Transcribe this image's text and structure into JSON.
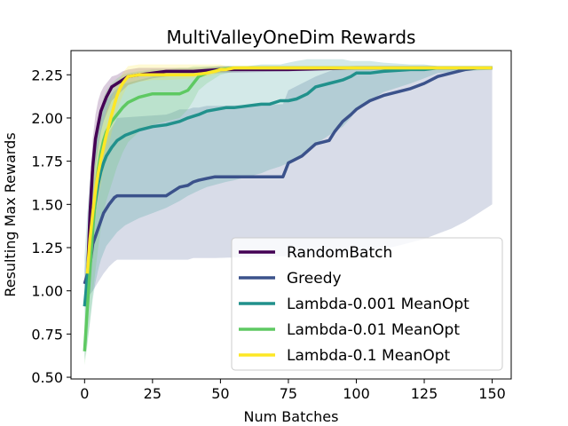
{
  "chart_data": {
    "type": "line",
    "title": "MultiValleyOneDim Rewards",
    "xlabel": "Num Batches",
    "ylabel": "Resulting Max Rewards",
    "xlim": [
      -5,
      157
    ],
    "ylim": [
      0.49,
      2.39
    ],
    "xticks": [
      0,
      25,
      50,
      75,
      100,
      125,
      150
    ],
    "xtick_labels": [
      "0",
      "25",
      "50",
      "75",
      "100",
      "125",
      "150"
    ],
    "yticks": [
      0.5,
      0.75,
      1.0,
      1.25,
      1.5,
      1.75,
      2.0,
      2.25
    ],
    "ytick_labels": [
      "0.50",
      "0.75",
      "1.00",
      "1.25",
      "1.50",
      "1.75",
      "2.00",
      "2.25"
    ],
    "legend_position": "lower-right",
    "series": [
      {
        "name": "RandomBatch",
        "color": "#440154",
        "x": [
          1,
          2,
          3,
          4,
          5,
          6,
          7,
          8,
          9,
          10,
          12,
          14,
          16,
          20,
          25,
          30,
          40,
          50,
          75,
          100,
          125,
          150
        ],
        "y": [
          1.06,
          1.45,
          1.72,
          1.88,
          1.96,
          2.04,
          2.08,
          2.12,
          2.15,
          2.18,
          2.2,
          2.22,
          2.24,
          2.25,
          2.26,
          2.27,
          2.27,
          2.28,
          2.28,
          2.29,
          2.29,
          2.29
        ],
        "lower": [
          1.0,
          1.3,
          1.55,
          1.72,
          1.82,
          1.92,
          1.98,
          2.02,
          2.06,
          2.1,
          2.13,
          2.16,
          2.19,
          2.21,
          2.23,
          2.24,
          2.25,
          2.26,
          2.27,
          2.28,
          2.28,
          2.28
        ],
        "upper": [
          1.12,
          1.6,
          1.88,
          2.02,
          2.1,
          2.15,
          2.18,
          2.2,
          2.22,
          2.24,
          2.25,
          2.27,
          2.28,
          2.29,
          2.29,
          2.29,
          2.29,
          2.3,
          2.3,
          2.3,
          2.3,
          2.3
        ]
      },
      {
        "name": "Greedy",
        "color": "#3b528b",
        "x": [
          0,
          2,
          3,
          5,
          7,
          9,
          11,
          12,
          30,
          32,
          35,
          38,
          40,
          42,
          45,
          48,
          73,
          74,
          75,
          80,
          85,
          90,
          92,
          95,
          98,
          100,
          105,
          110,
          115,
          120,
          125,
          130,
          135,
          140,
          145,
          150
        ],
        "y": [
          1.04,
          1.15,
          1.27,
          1.36,
          1.45,
          1.5,
          1.54,
          1.55,
          1.55,
          1.57,
          1.6,
          1.61,
          1.63,
          1.64,
          1.65,
          1.66,
          1.66,
          1.7,
          1.74,
          1.78,
          1.85,
          1.87,
          1.92,
          1.98,
          2.02,
          2.05,
          2.1,
          2.13,
          2.15,
          2.17,
          2.2,
          2.24,
          2.26,
          2.28,
          2.29,
          2.29
        ],
        "lower": [
          0.95,
          0.98,
          1.0,
          1.05,
          1.1,
          1.14,
          1.17,
          1.18,
          1.18,
          1.18,
          1.18,
          1.18,
          1.19,
          1.19,
          1.19,
          1.19,
          1.2,
          1.2,
          1.2,
          1.2,
          1.2,
          1.21,
          1.21,
          1.21,
          1.22,
          1.22,
          1.23,
          1.24,
          1.26,
          1.28,
          1.3,
          1.33,
          1.36,
          1.4,
          1.45,
          1.5
        ],
        "upper": [
          1.12,
          1.4,
          1.6,
          1.75,
          1.85,
          1.92,
          1.97,
          2.0,
          2.02,
          2.03,
          2.05,
          2.05,
          2.06,
          2.06,
          2.07,
          2.07,
          2.08,
          2.12,
          2.16,
          2.2,
          2.24,
          2.27,
          2.28,
          2.29,
          2.29,
          2.3,
          2.3,
          2.3,
          2.3,
          2.3,
          2.3,
          2.3,
          2.3,
          2.3,
          2.3,
          2.3
        ]
      },
      {
        "name": "Lambda-0.001 MeanOpt",
        "color": "#21918c",
        "x": [
          0,
          1,
          2,
          3,
          4,
          5,
          6,
          7,
          8,
          10,
          12,
          15,
          20,
          25,
          30,
          35,
          38,
          42,
          45,
          52,
          55,
          60,
          65,
          68,
          72,
          75,
          78,
          82,
          85,
          90,
          95,
          98,
          100,
          105,
          110,
          120,
          125,
          130,
          150
        ],
        "y": [
          0.91,
          1.08,
          1.25,
          1.4,
          1.52,
          1.62,
          1.69,
          1.74,
          1.78,
          1.83,
          1.87,
          1.9,
          1.93,
          1.95,
          1.96,
          1.98,
          2.0,
          2.02,
          2.04,
          2.06,
          2.06,
          2.07,
          2.08,
          2.08,
          2.1,
          2.1,
          2.11,
          2.14,
          2.18,
          2.2,
          2.22,
          2.24,
          2.26,
          2.26,
          2.27,
          2.28,
          2.28,
          2.29,
          2.29
        ],
        "lower": [
          0.6,
          0.7,
          0.82,
          0.95,
          1.05,
          1.12,
          1.18,
          1.22,
          1.26,
          1.3,
          1.34,
          1.38,
          1.42,
          1.45,
          1.48,
          1.52,
          1.55,
          1.58,
          1.6,
          1.63,
          1.64,
          1.66,
          1.68,
          1.7,
          1.72,
          1.74,
          1.76,
          1.8,
          1.85,
          1.9,
          1.95,
          2.0,
          2.05,
          2.1,
          2.15,
          2.2,
          2.23,
          2.26,
          2.28
        ],
        "upper": [
          1.2,
          1.45,
          1.65,
          1.8,
          1.9,
          1.98,
          2.03,
          2.07,
          2.1,
          2.14,
          2.17,
          2.2,
          2.22,
          2.24,
          2.25,
          2.26,
          2.27,
          2.28,
          2.29,
          2.3,
          2.3,
          2.3,
          2.31,
          2.31,
          2.31,
          2.32,
          2.33,
          2.34,
          2.34,
          2.34,
          2.34,
          2.33,
          2.33,
          2.33,
          2.32,
          2.31,
          2.31,
          2.3,
          2.3
        ]
      },
      {
        "name": "Lambda-0.01 MeanOpt",
        "color": "#5ec962",
        "x": [
          0,
          1,
          2,
          3,
          4,
          5,
          6,
          7,
          8,
          10,
          12,
          14,
          16,
          20,
          25,
          30,
          35,
          38,
          40,
          42,
          45,
          50,
          55,
          75,
          100,
          150
        ],
        "y": [
          0.65,
          0.9,
          1.12,
          1.35,
          1.55,
          1.7,
          1.8,
          1.87,
          1.92,
          1.98,
          2.02,
          2.06,
          2.09,
          2.12,
          2.14,
          2.14,
          2.14,
          2.16,
          2.2,
          2.24,
          2.26,
          2.28,
          2.29,
          2.29,
          2.29,
          2.29
        ],
        "lower": [
          0.57,
          0.68,
          0.82,
          0.98,
          1.12,
          1.25,
          1.36,
          1.45,
          1.52,
          1.62,
          1.72,
          1.8,
          1.86,
          1.92,
          1.96,
          1.98,
          2.0,
          2.05,
          2.1,
          2.16,
          2.2,
          2.25,
          2.27,
          2.28,
          2.28,
          2.28
        ],
        "upper": [
          0.8,
          1.1,
          1.4,
          1.65,
          1.85,
          1.98,
          2.06,
          2.12,
          2.16,
          2.2,
          2.23,
          2.25,
          2.26,
          2.27,
          2.28,
          2.28,
          2.29,
          2.29,
          2.3,
          2.3,
          2.3,
          2.3,
          2.3,
          2.3,
          2.3,
          2.3
        ]
      },
      {
        "name": "Lambda-0.1 MeanOpt",
        "color": "#fde725",
        "x": [
          1,
          2,
          3,
          4,
          5,
          6,
          7,
          8,
          9,
          10,
          11,
          12,
          13,
          14,
          15,
          16,
          20,
          25,
          30,
          40,
          45,
          48,
          50,
          52,
          55,
          60,
          75,
          100,
          125,
          150
        ],
        "y": [
          1.1,
          1.3,
          1.45,
          1.58,
          1.68,
          1.76,
          1.83,
          1.9,
          1.96,
          2.02,
          2.08,
          2.13,
          2.17,
          2.2,
          2.22,
          2.24,
          2.25,
          2.25,
          2.25,
          2.25,
          2.26,
          2.27,
          2.28,
          2.28,
          2.29,
          2.29,
          2.29,
          2.29,
          2.29,
          2.29
        ],
        "lower": [
          1.0,
          1.15,
          1.28,
          1.42,
          1.53,
          1.62,
          1.7,
          1.78,
          1.85,
          1.92,
          1.98,
          2.04,
          2.09,
          2.13,
          2.16,
          2.19,
          2.21,
          2.22,
          2.22,
          2.23,
          2.24,
          2.25,
          2.26,
          2.27,
          2.28,
          2.28,
          2.28,
          2.28,
          2.28,
          2.28
        ],
        "upper": [
          1.2,
          1.45,
          1.62,
          1.75,
          1.84,
          1.92,
          1.98,
          2.04,
          2.08,
          2.12,
          2.16,
          2.2,
          2.23,
          2.26,
          2.28,
          2.3,
          2.31,
          2.31,
          2.31,
          2.31,
          2.31,
          2.31,
          2.31,
          2.3,
          2.3,
          2.3,
          2.3,
          2.3,
          2.3,
          2.3
        ]
      }
    ]
  }
}
